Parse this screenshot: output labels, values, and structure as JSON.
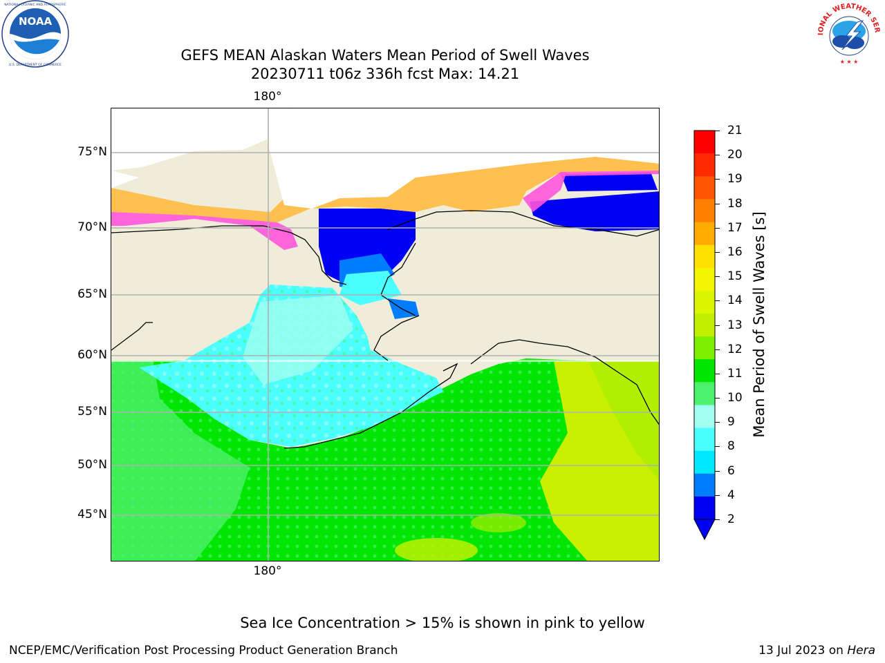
{
  "header": {
    "title_line1": "GEFS MEAN Alaskan Waters Mean Period of Swell Waves",
    "title_line2": "20230711 t06z 336h fcst   Max: 14.21",
    "left_logo": {
      "icon": "noaa-logo",
      "text": "NOAA",
      "ring_text": "NATIONAL OCEANIC AND ATMOSPHERIC ADMINISTRATION · U.S. DEPARTMENT OF COMMERCE"
    },
    "right_logo": {
      "icon": "nws-logo",
      "ring_text": "NATIONAL WEATHER SERVICE"
    }
  },
  "map": {
    "lon_label_top": "180°",
    "lon_label_bottom": "180°",
    "lat_labels": [
      "75°N",
      "70°N",
      "65°N",
      "60°N",
      "55°N",
      "50°N",
      "45°N"
    ],
    "colors": {
      "land": "#efedda",
      "coast": "#000000",
      "grid": "#b0b0b0"
    }
  },
  "colorbar": {
    "title": "Mean Period of Swell Waves [s]",
    "ticks": [
      "21",
      "20",
      "19",
      "18",
      "17",
      "16",
      "15",
      "14",
      "13",
      "12",
      "11",
      "10",
      "9",
      "8",
      "6",
      "4",
      "2"
    ],
    "colors": [
      "#ff0000",
      "#ff2a00",
      "#ff5500",
      "#ff8000",
      "#ffaa00",
      "#ffe000",
      "#f5f500",
      "#dcf500",
      "#c0f000",
      "#80ee00",
      "#00e600",
      "#4cf06a",
      "#a0fff0",
      "#4cffff",
      "#00eaff",
      "#007dff",
      "#0000f5"
    ]
  },
  "caption": "Sea Ice Concentration > 15% is shown in pink to yellow",
  "footer": {
    "left": "NCEP/EMC/Verification Post Processing Product Generation Branch",
    "right_prefix": "13 Jul 2023 on ",
    "right_host": "Hera"
  }
}
